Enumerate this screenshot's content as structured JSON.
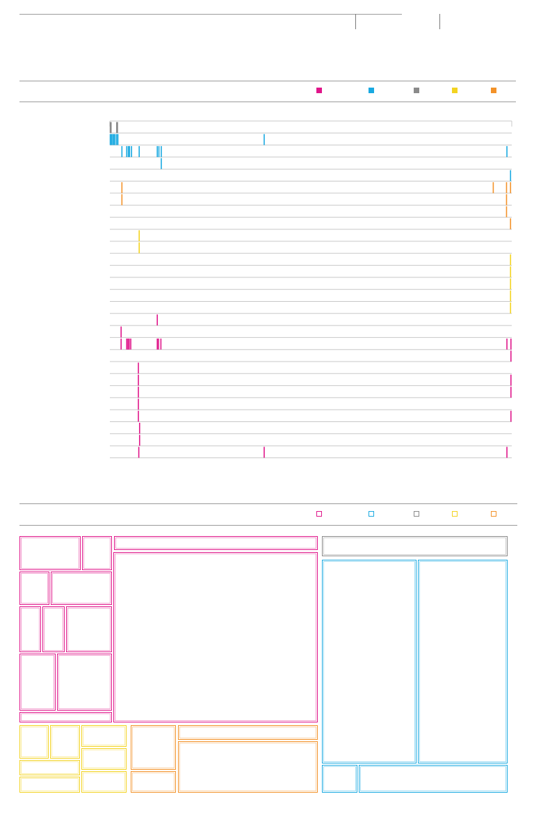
{
  "colors": {
    "magenta": "#e0158a",
    "cyan": "#19a9e1",
    "gray": "#8a8a8a",
    "yellow": "#f3d321",
    "orange": "#f39229",
    "track": "#c8c8c8"
  },
  "legend_top": [
    {
      "name": "magenta",
      "color": "#e0158a",
      "label": ""
    },
    {
      "name": "cyan",
      "color": "#19a9e1",
      "label": ""
    },
    {
      "name": "gray",
      "color": "#8a8a8a",
      "label": ""
    },
    {
      "name": "yellow",
      "color": "#f3d321",
      "label": ""
    },
    {
      "name": "orange",
      "color": "#f39229",
      "label": ""
    }
  ],
  "legend_bottom": [
    {
      "name": "magenta",
      "color": "#e0158a",
      "label": ""
    },
    {
      "name": "cyan",
      "color": "#19a9e1",
      "label": ""
    },
    {
      "name": "gray",
      "color": "#8a8a8a",
      "label": ""
    },
    {
      "name": "yellow",
      "color": "#f3d321",
      "label": ""
    },
    {
      "name": "orange",
      "color": "#f39229",
      "label": ""
    }
  ],
  "chart_data": [
    {
      "type": "strip",
      "title": "",
      "xlim": [
        0,
        1000
      ],
      "rows": [
        {
          "color": "gray",
          "ticks": [
            1,
            3,
            17,
            19
          ]
        },
        {
          "color": "cyan",
          "ticks": [
            1,
            4,
            7,
            10,
            13,
            17,
            20,
            384
          ]
        },
        {
          "color": "cyan",
          "ticks": [
            30,
            42,
            46,
            49,
            54,
            73,
            118,
            122,
            128,
            988
          ]
        },
        {
          "color": "cyan",
          "ticks": [
            128
          ]
        },
        {
          "color": "cyan",
          "ticks": [
            997
          ]
        },
        {
          "color": "orange",
          "ticks": [
            30,
            954,
            987,
            997
          ]
        },
        {
          "color": "orange",
          "ticks": [
            30,
            987
          ]
        },
        {
          "color": "orange",
          "ticks": [
            987
          ]
        },
        {
          "color": "orange",
          "ticks": [
            997
          ]
        },
        {
          "color": "yellow",
          "ticks": [
            73
          ]
        },
        {
          "color": "yellow",
          "ticks": [
            73
          ]
        },
        {
          "color": "yellow",
          "ticks": [
            997
          ]
        },
        {
          "color": "yellow",
          "ticks": [
            997
          ]
        },
        {
          "color": "yellow",
          "ticks": [
            997
          ]
        },
        {
          "color": "yellow",
          "ticks": [
            997
          ]
        },
        {
          "color": "yellow",
          "ticks": [
            997
          ]
        },
        {
          "color": "magenta",
          "ticks": [
            118
          ]
        },
        {
          "color": "magenta",
          "ticks": [
            28
          ]
        },
        {
          "color": "magenta",
          "ticks": [
            28,
            42,
            45,
            48,
            52,
            118,
            121,
            127,
            988,
            998
          ]
        },
        {
          "color": "magenta",
          "ticks": [
            998
          ]
        },
        {
          "color": "magenta",
          "ticks": [
            71
          ]
        },
        {
          "color": "magenta",
          "ticks": [
            71,
            998
          ]
        },
        {
          "color": "magenta",
          "ticks": [
            71,
            998
          ]
        },
        {
          "color": "magenta",
          "ticks": [
            71
          ]
        },
        {
          "color": "magenta",
          "ticks": [
            71,
            998
          ]
        },
        {
          "color": "magenta",
          "ticks": [
            74
          ]
        },
        {
          "color": "magenta",
          "ticks": [
            74
          ]
        },
        {
          "color": "magenta",
          "ticks": [
            72,
            384,
            988
          ]
        }
      ]
    },
    {
      "type": "treemap",
      "title": "",
      "groups": [
        {
          "color": "magenta",
          "tiles": [
            {
              "id": "m1",
              "value": 2.1
            },
            {
              "id": "m2",
              "value": 1.0
            },
            {
              "id": "m3",
              "value": 1.0
            },
            {
              "id": "m4",
              "value": 2.1
            },
            {
              "id": "m5",
              "value": 0.9
            },
            {
              "id": "m6",
              "value": 0.9
            },
            {
              "id": "m7",
              "value": 2.2
            },
            {
              "id": "m8",
              "value": 2.1
            },
            {
              "id": "m9",
              "value": 3.3
            },
            {
              "id": "m10",
              "value": 0.5
            },
            {
              "id": "m11",
              "value": 2.3
            },
            {
              "id": "m12",
              "value": 25.0
            }
          ]
        },
        {
          "color": "gray",
          "tiles": [
            {
              "id": "g1",
              "value": 3.0
            }
          ]
        },
        {
          "color": "cyan",
          "tiles": [
            {
              "id": "c1",
              "value": 15.8
            },
            {
              "id": "c2",
              "value": 15.0
            },
            {
              "id": "c3",
              "value": 2.2
            },
            {
              "id": "c4",
              "value": 8.5
            }
          ]
        },
        {
          "color": "yellow",
          "tiles": [
            {
              "id": "y1",
              "value": 1.2
            },
            {
              "id": "y2",
              "value": 1.2
            },
            {
              "id": "y3",
              "value": 0.9
            },
            {
              "id": "y4",
              "value": 0.9
            },
            {
              "id": "y5",
              "value": 1.0
            },
            {
              "id": "y6",
              "value": 1.0
            },
            {
              "id": "y7",
              "value": 1.0
            }
          ]
        },
        {
          "color": "orange",
          "tiles": [
            {
              "id": "o1",
              "value": 2.1
            },
            {
              "id": "o2",
              "value": 1.0
            },
            {
              "id": "o3",
              "value": 1.0
            },
            {
              "id": "o4",
              "value": 7.5
            }
          ]
        }
      ]
    }
  ]
}
